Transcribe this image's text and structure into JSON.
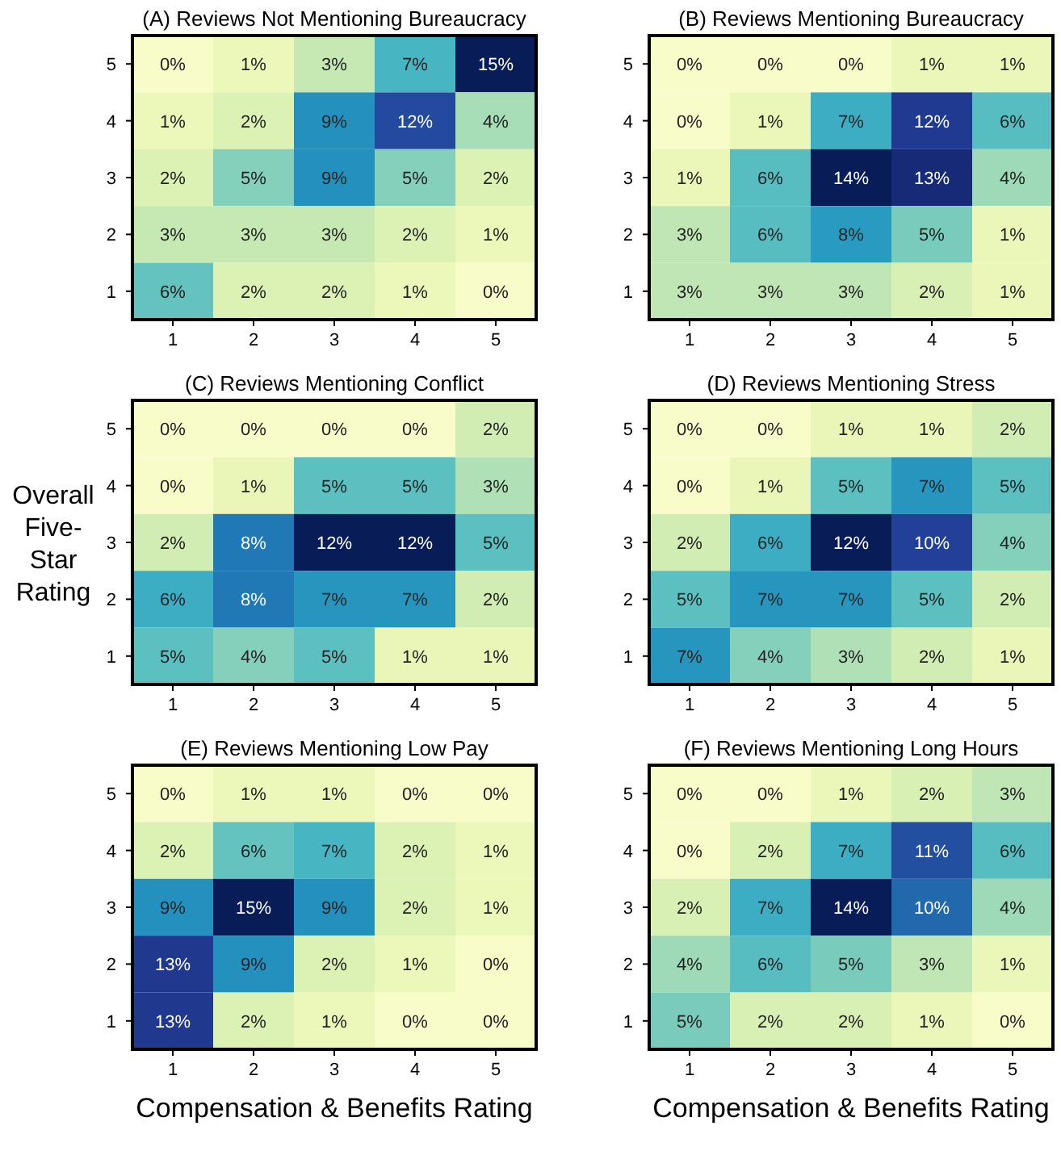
{
  "chart_data": [
    {
      "type": "heatmap",
      "title": "(A) Reviews Not Mentioning Bureaucracy",
      "categories": [
        "1",
        "2",
        "3",
        "4",
        "5"
      ],
      "y_categories": [
        "5",
        "4",
        "3",
        "2",
        "1"
      ],
      "cells": [
        [
          0,
          1,
          3,
          7,
          15
        ],
        [
          1,
          2,
          9,
          12,
          4
        ],
        [
          2,
          5,
          9,
          5,
          2
        ],
        [
          3,
          3,
          3,
          2,
          1
        ],
        [
          6,
          2,
          2,
          1,
          0
        ]
      ],
      "cell_labels": [
        [
          "0%",
          "1%",
          "3%",
          "7%",
          "15%"
        ],
        [
          "1%",
          "2%",
          "9%",
          "12%",
          "4%"
        ],
        [
          "2%",
          "5%",
          "9%",
          "5%",
          "2%"
        ],
        [
          "3%",
          "3%",
          "3%",
          "2%",
          "1%"
        ],
        [
          "6%",
          "2%",
          "2%",
          "1%",
          "0%"
        ]
      ]
    },
    {
      "type": "heatmap",
      "title": "(B) Reviews Mentioning Bureaucracy",
      "categories": [
        "1",
        "2",
        "3",
        "4",
        "5"
      ],
      "y_categories": [
        "5",
        "4",
        "3",
        "2",
        "1"
      ],
      "cells": [
        [
          0,
          0,
          0,
          1,
          1
        ],
        [
          0,
          1,
          7,
          12,
          6
        ],
        [
          1,
          6,
          14,
          13,
          4
        ],
        [
          3,
          6,
          8,
          5,
          1
        ],
        [
          3,
          3,
          3,
          2,
          1
        ]
      ],
      "cell_labels": [
        [
          "0%",
          "0%",
          "0%",
          "1%",
          "1%"
        ],
        [
          "0%",
          "1%",
          "7%",
          "12%",
          "6%"
        ],
        [
          "1%",
          "6%",
          "14%",
          "13%",
          "4%"
        ],
        [
          "3%",
          "6%",
          "8%",
          "5%",
          "1%"
        ],
        [
          "3%",
          "3%",
          "3%",
          "2%",
          "1%"
        ]
      ]
    },
    {
      "type": "heatmap",
      "title": "(C) Reviews Mentioning Conflict",
      "ylabel": "Overall Five-Star Rating",
      "categories": [
        "1",
        "2",
        "3",
        "4",
        "5"
      ],
      "y_categories": [
        "5",
        "4",
        "3",
        "2",
        "1"
      ],
      "cells": [
        [
          0,
          0,
          0,
          0,
          2
        ],
        [
          0,
          1,
          5,
          5,
          3
        ],
        [
          2,
          8,
          12,
          12,
          5
        ],
        [
          6,
          8,
          7,
          7,
          2
        ],
        [
          5,
          4,
          5,
          1,
          1
        ]
      ],
      "cell_labels": [
        [
          "0%",
          "0%",
          "0%",
          "0%",
          "2%"
        ],
        [
          "0%",
          "1%",
          "5%",
          "5%",
          "3%"
        ],
        [
          "2%",
          "8%",
          "12%",
          "12%",
          "5%"
        ],
        [
          "6%",
          "8%",
          "7%",
          "7%",
          "2%"
        ],
        [
          "5%",
          "4%",
          "5%",
          "1%",
          "1%"
        ]
      ]
    },
    {
      "type": "heatmap",
      "title": "(D) Reviews Mentioning Stress",
      "categories": [
        "1",
        "2",
        "3",
        "4",
        "5"
      ],
      "y_categories": [
        "5",
        "4",
        "3",
        "2",
        "1"
      ],
      "cells": [
        [
          0,
          0,
          1,
          1,
          2
        ],
        [
          0,
          1,
          5,
          7,
          5
        ],
        [
          2,
          6,
          12,
          10,
          4
        ],
        [
          5,
          7,
          7,
          5,
          2
        ],
        [
          7,
          4,
          3,
          2,
          1
        ]
      ],
      "cell_labels": [
        [
          "0%",
          "0%",
          "1%",
          "1%",
          "2%"
        ],
        [
          "0%",
          "1%",
          "5%",
          "7%",
          "5%"
        ],
        [
          "2%",
          "6%",
          "12%",
          "10%",
          "4%"
        ],
        [
          "5%",
          "7%",
          "7%",
          "5%",
          "2%"
        ],
        [
          "7%",
          "4%",
          "3%",
          "2%",
          "1%"
        ]
      ]
    },
    {
      "type": "heatmap",
      "title": "(E) Reviews Mentioning Low Pay",
      "xlabel": "Compensation & Benefits Rating",
      "categories": [
        "1",
        "2",
        "3",
        "4",
        "5"
      ],
      "y_categories": [
        "5",
        "4",
        "3",
        "2",
        "1"
      ],
      "cells": [
        [
          0,
          1,
          1,
          0,
          0
        ],
        [
          2,
          6,
          7,
          2,
          1
        ],
        [
          9,
          15,
          9,
          2,
          1
        ],
        [
          13,
          9,
          2,
          1,
          0
        ],
        [
          13,
          2,
          1,
          0,
          0
        ]
      ],
      "cell_labels": [
        [
          "0%",
          "1%",
          "1%",
          "0%",
          "0%"
        ],
        [
          "2%",
          "6%",
          "7%",
          "2%",
          "1%"
        ],
        [
          "9%",
          "15%",
          "9%",
          "2%",
          "1%"
        ],
        [
          "13%",
          "9%",
          "2%",
          "1%",
          "0%"
        ],
        [
          "13%",
          "2%",
          "1%",
          "0%",
          "0%"
        ]
      ]
    },
    {
      "type": "heatmap",
      "title": "(F) Reviews Mentioning Long Hours",
      "xlabel": "Compensation & Benefits Rating",
      "categories": [
        "1",
        "2",
        "3",
        "4",
        "5"
      ],
      "y_categories": [
        "5",
        "4",
        "3",
        "2",
        "1"
      ],
      "cells": [
        [
          0,
          0,
          1,
          2,
          3
        ],
        [
          0,
          2,
          7,
          11,
          6
        ],
        [
          2,
          7,
          14,
          10,
          4
        ],
        [
          4,
          6,
          5,
          3,
          1
        ],
        [
          5,
          2,
          2,
          1,
          0
        ]
      ],
      "cell_labels": [
        [
          "0%",
          "0%",
          "1%",
          "2%",
          "3%"
        ],
        [
          "0%",
          "2%",
          "7%",
          "11%",
          "6%"
        ],
        [
          "2%",
          "7%",
          "14%",
          "10%",
          "4%"
        ],
        [
          "4%",
          "6%",
          "5%",
          "3%",
          "1%"
        ],
        [
          "5%",
          "2%",
          "2%",
          "1%",
          "0%"
        ]
      ]
    }
  ]
}
